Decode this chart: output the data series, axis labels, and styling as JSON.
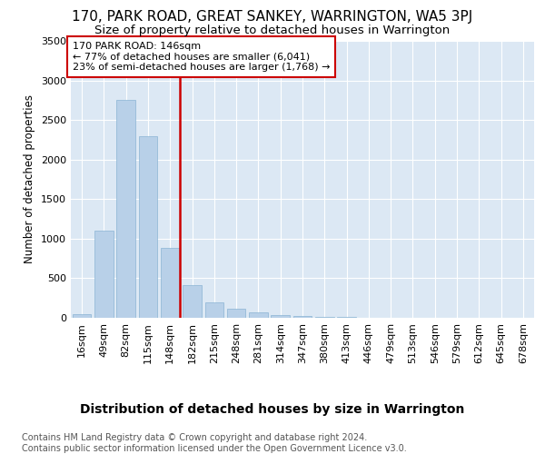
{
  "title": "170, PARK ROAD, GREAT SANKEY, WARRINGTON, WA5 3PJ",
  "subtitle": "Size of property relative to detached houses in Warrington",
  "xlabel": "Distribution of detached houses by size in Warrington",
  "ylabel": "Number of detached properties",
  "categories": [
    "16sqm",
    "49sqm",
    "82sqm",
    "115sqm",
    "148sqm",
    "182sqm",
    "215sqm",
    "248sqm",
    "281sqm",
    "314sqm",
    "347sqm",
    "380sqm",
    "413sqm",
    "446sqm",
    "479sqm",
    "513sqm",
    "546sqm",
    "579sqm",
    "612sqm",
    "645sqm",
    "678sqm"
  ],
  "values": [
    50,
    1100,
    2750,
    2290,
    880,
    410,
    200,
    110,
    65,
    40,
    20,
    15,
    10,
    5,
    2,
    1,
    0,
    0,
    0,
    0,
    0
  ],
  "bar_color": "#b8d0e8",
  "bar_edge_color": "#8ab4d4",
  "vline_index": 4,
  "vline_color": "#cc0000",
  "ann_title": "170 PARK ROAD: 146sqm",
  "ann_line2": "← 77% of detached houses are smaller (6,041)",
  "ann_line3": "23% of semi-detached houses are larger (1,768) →",
  "ann_box_edgecolor": "#cc0000",
  "ylim": [
    0,
    3500
  ],
  "yticks": [
    0,
    500,
    1000,
    1500,
    2000,
    2500,
    3000,
    3500
  ],
  "grid_color": "white",
  "bg_color": "#dce8f4",
  "title_fontsize": 11,
  "subtitle_fontsize": 9.5,
  "xlabel_fontsize": 10,
  "ylabel_fontsize": 8.5,
  "tick_fontsize": 8,
  "ann_fontsize": 8,
  "footer_fontsize": 7,
  "footer_line1": "Contains HM Land Registry data © Crown copyright and database right 2024.",
  "footer_line2": "Contains public sector information licensed under the Open Government Licence v3.0."
}
